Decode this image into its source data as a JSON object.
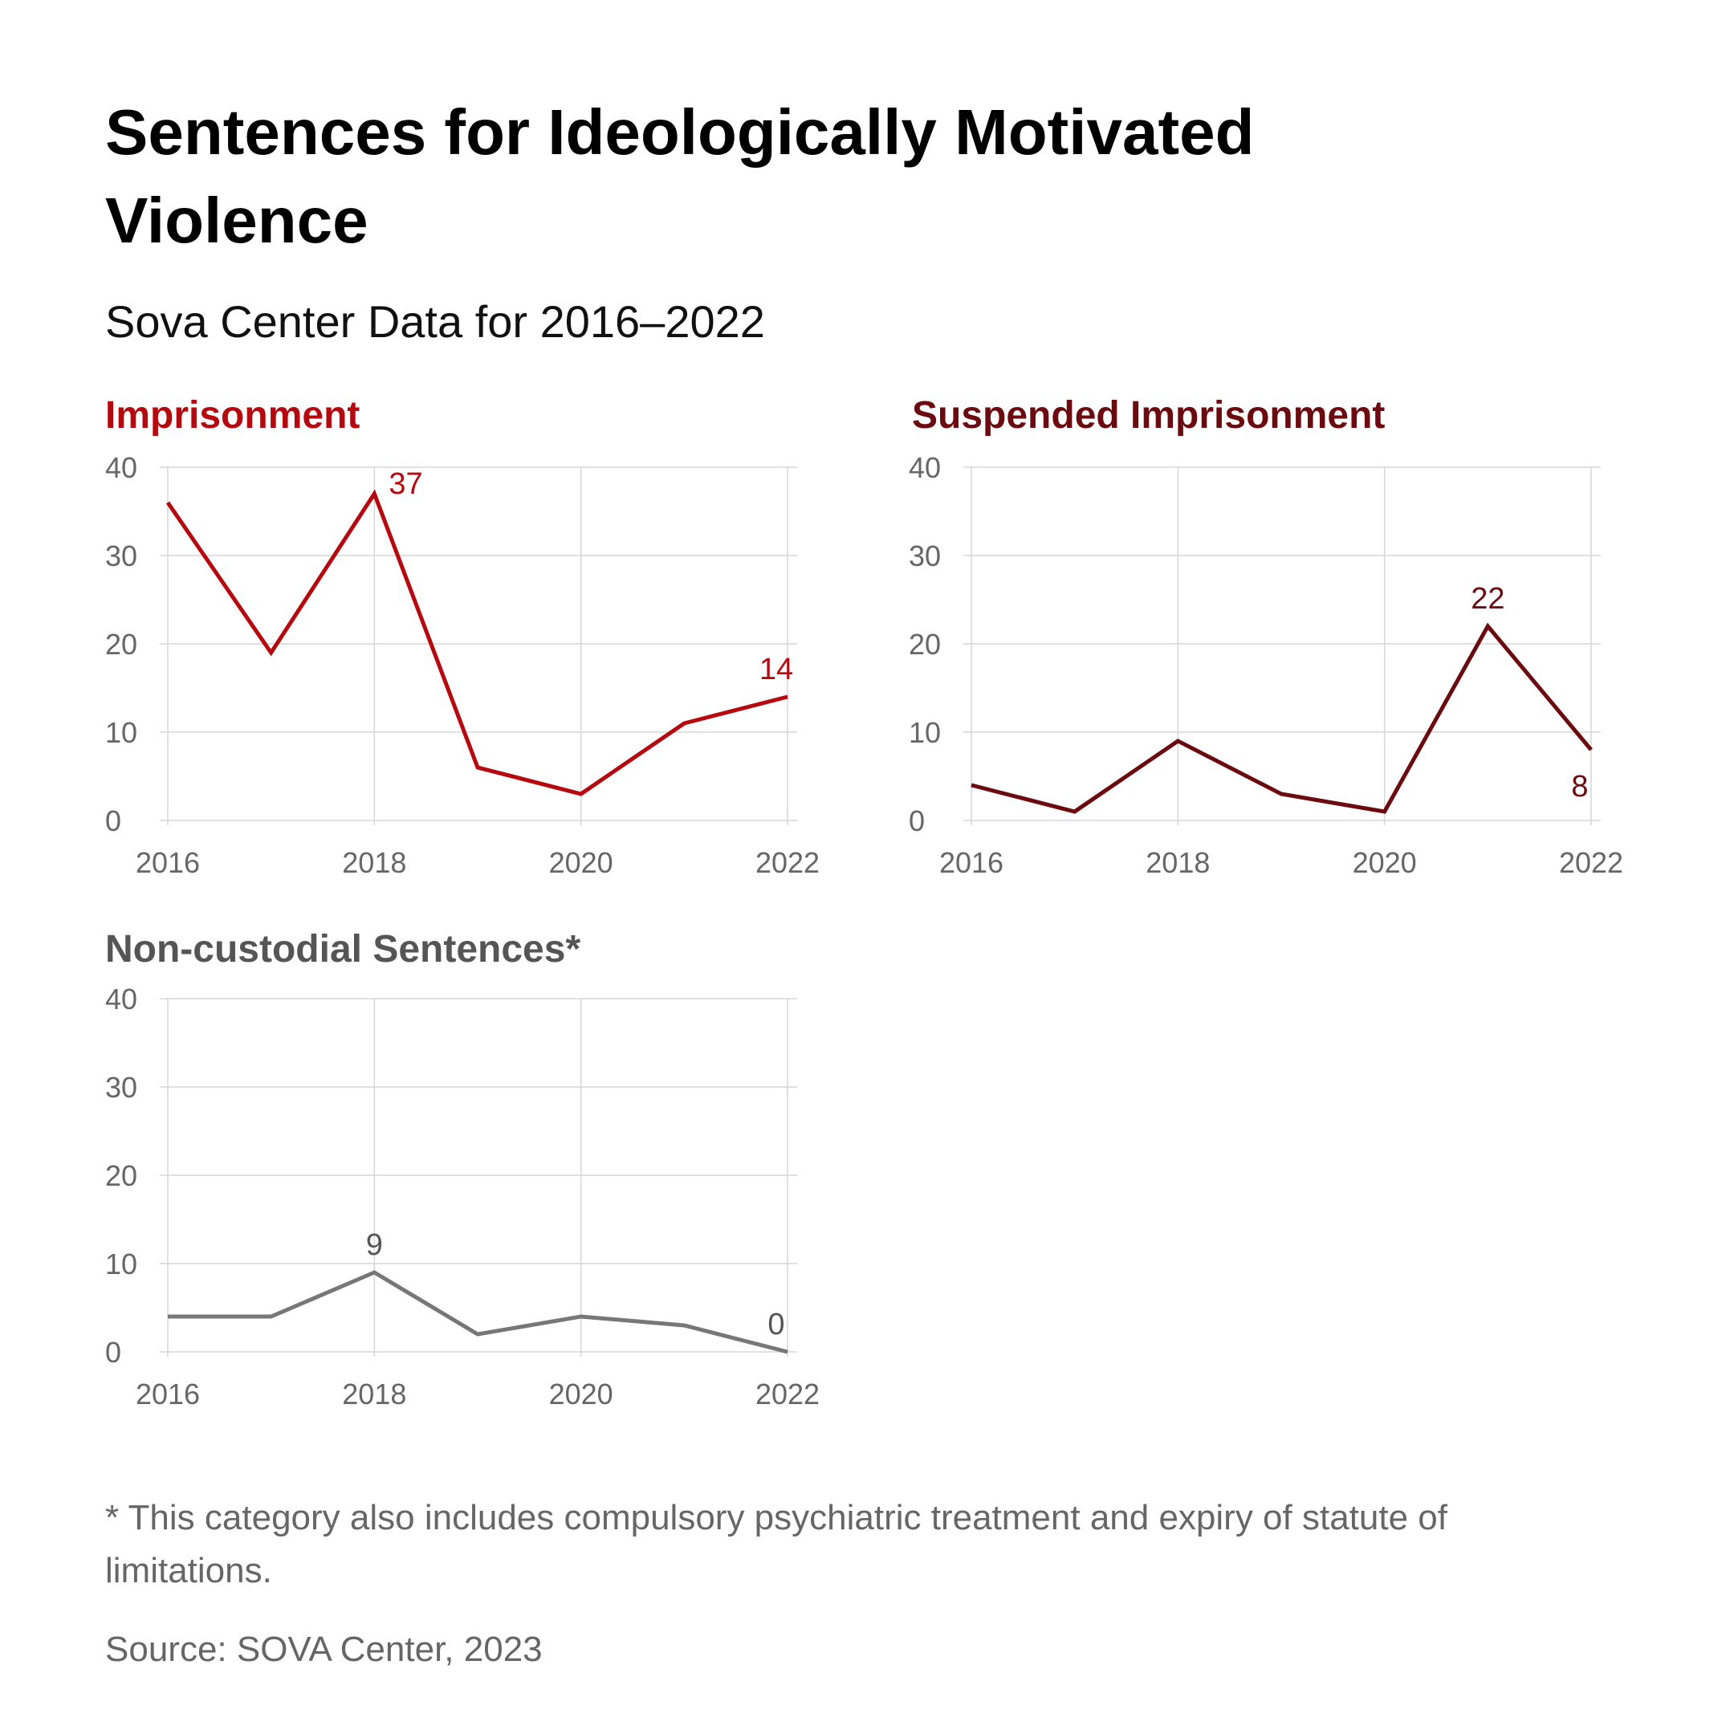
{
  "header": {
    "title": "Sentences for Ideologically Motivated Violence",
    "subtitle": "Sova Center Data for 2016–2022"
  },
  "chart_data": [
    {
      "type": "line",
      "title": "Imprisonment",
      "color": "#b5090f",
      "x": [
        2016,
        2017,
        2018,
        2019,
        2020,
        2021,
        2022
      ],
      "xticks": [
        "2016",
        "2018",
        "2020",
        "2022"
      ],
      "yticks": [
        "0",
        "10",
        "20",
        "30",
        "40"
      ],
      "ylim": [
        0,
        40
      ],
      "values": [
        36,
        19,
        37,
        6,
        3,
        11,
        14
      ],
      "labels": [
        {
          "x": 2018,
          "value": 37,
          "text": "37",
          "position": "right"
        },
        {
          "x": 2022,
          "value": 14,
          "text": "14",
          "position": "above"
        }
      ],
      "grid": true
    },
    {
      "type": "line",
      "title": "Suspended Imprisonment",
      "color": "#6b0a0f",
      "x": [
        2016,
        2017,
        2018,
        2019,
        2020,
        2021,
        2022
      ],
      "xticks": [
        "2016",
        "2018",
        "2020",
        "2022"
      ],
      "yticks": [
        "0",
        "10",
        "20",
        "30",
        "40"
      ],
      "ylim": [
        0,
        40
      ],
      "values": [
        4,
        1,
        9,
        3,
        1,
        22,
        8
      ],
      "labels": [
        {
          "x": 2021,
          "value": 22,
          "text": "22",
          "position": "above"
        },
        {
          "x": 2022,
          "value": 8,
          "text": "8",
          "position": "below"
        }
      ],
      "grid": true
    },
    {
      "type": "line",
      "title": "Non-custodial Sentences*",
      "color": "#777777",
      "titleColor": "#555555",
      "labelColor": "#555555",
      "x": [
        2016,
        2017,
        2018,
        2019,
        2020,
        2021,
        2022
      ],
      "xticks": [
        "2016",
        "2018",
        "2020",
        "2022"
      ],
      "yticks": [
        "0",
        "10",
        "20",
        "30",
        "40"
      ],
      "ylim": [
        0,
        40
      ],
      "values": [
        4,
        4,
        9,
        2,
        4,
        3,
        0
      ],
      "labels": [
        {
          "x": 2018,
          "value": 9,
          "text": "9",
          "position": "above"
        },
        {
          "x": 2022,
          "value": 0,
          "text": "0",
          "position": "above"
        }
      ],
      "grid": true
    }
  ],
  "footer": {
    "note": "* This category also includes compulsory psychiatric treatment and expiry of statute of limitations.",
    "source": "Source: SOVA Center, 2023"
  }
}
